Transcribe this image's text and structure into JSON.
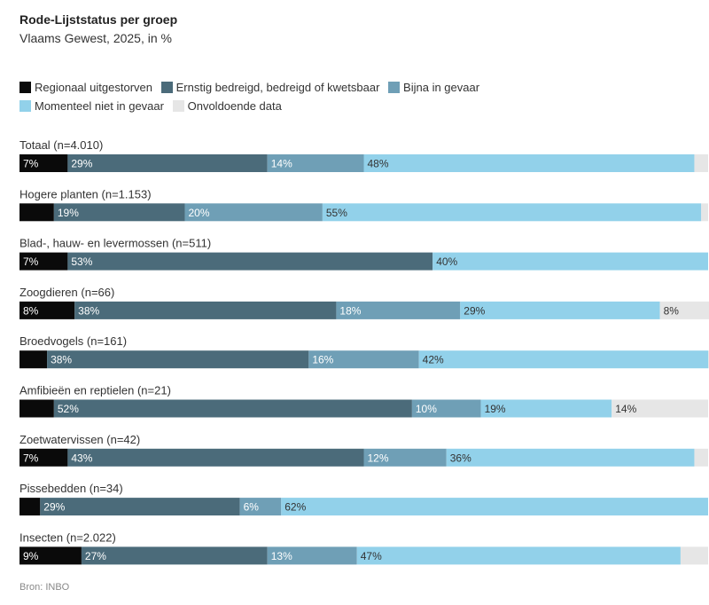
{
  "header": {
    "title": "Rode-Lijststatus per groep",
    "subtitle": "Vlaams Gewest, 2025, in %"
  },
  "legend": [
    {
      "label": "Regionaal uitgestorven",
      "color": "#0a0a0a"
    },
    {
      "label": "Ernstig bedreigd, bedreigd of kwetsbaar",
      "color": "#4b6b7a"
    },
    {
      "label": "Bijna in gevaar",
      "color": "#6f9fb6"
    },
    {
      "label": "Momenteel niet in gevaar",
      "color": "#92d1ea"
    },
    {
      "label": "Onvoldoende data",
      "color": "#e6e6e6"
    }
  ],
  "source": "Bron: INBO",
  "chart_data": {
    "type": "bar",
    "orientation": "horizontal",
    "stacked": true,
    "xlim": [
      0,
      100
    ],
    "categories": [
      "Totaal (n=4.010)",
      "Hogere planten (n=1.153)",
      "Blad-, hauw- en levermossen (n=511)",
      "Zoogdieren (n=66)",
      "Broedvogels (n=161)",
      "Amfibieën en reptielen (n=21)",
      "Zoetwatervissen (n=42)",
      "Pissebedden (n=34)",
      "Insecten (n=2.022)"
    ],
    "series": [
      {
        "name": "Regionaal uitgestorven",
        "color": "#0a0a0a",
        "text_color": "#ffffff",
        "values": [
          7,
          5,
          7,
          8,
          4,
          5,
          7,
          3,
          9
        ],
        "labels": [
          "7%",
          "",
          "7%",
          "8%",
          "",
          "",
          "7%",
          "",
          "9%"
        ]
      },
      {
        "name": "Ernstig bedreigd, bedreigd of kwetsbaar",
        "color": "#4b6b7a",
        "text_color": "#ffffff",
        "values": [
          29,
          19,
          53,
          38,
          38,
          52,
          43,
          29,
          27
        ],
        "labels": [
          "29%",
          "19%",
          "53%",
          "38%",
          "38%",
          "52%",
          "43%",
          "29%",
          "27%"
        ]
      },
      {
        "name": "Bijna in gevaar",
        "color": "#6f9fb6",
        "text_color": "#ffffff",
        "values": [
          14,
          20,
          0,
          18,
          16,
          10,
          12,
          6,
          13
        ],
        "labels": [
          "14%",
          "20%",
          "",
          "18%",
          "16%",
          "10%",
          "12%",
          "6%",
          "13%"
        ]
      },
      {
        "name": "Momenteel niet in gevaar",
        "color": "#92d1ea",
        "text_color": "#333333",
        "values": [
          48,
          55,
          40,
          29,
          42,
          19,
          36,
          62,
          47
        ],
        "labels": [
          "48%",
          "55%",
          "40%",
          "29%",
          "42%",
          "19%",
          "36%",
          "62%",
          "47%"
        ]
      },
      {
        "name": "Onvoldoende data",
        "color": "#e6e6e6",
        "text_color": "#333333",
        "values": [
          2,
          1,
          0,
          8,
          1,
          14,
          2,
          0,
          4
        ],
        "labels": [
          "",
          "",
          "",
          "8%",
          "",
          "14%",
          "",
          "",
          ""
        ]
      }
    ]
  }
}
